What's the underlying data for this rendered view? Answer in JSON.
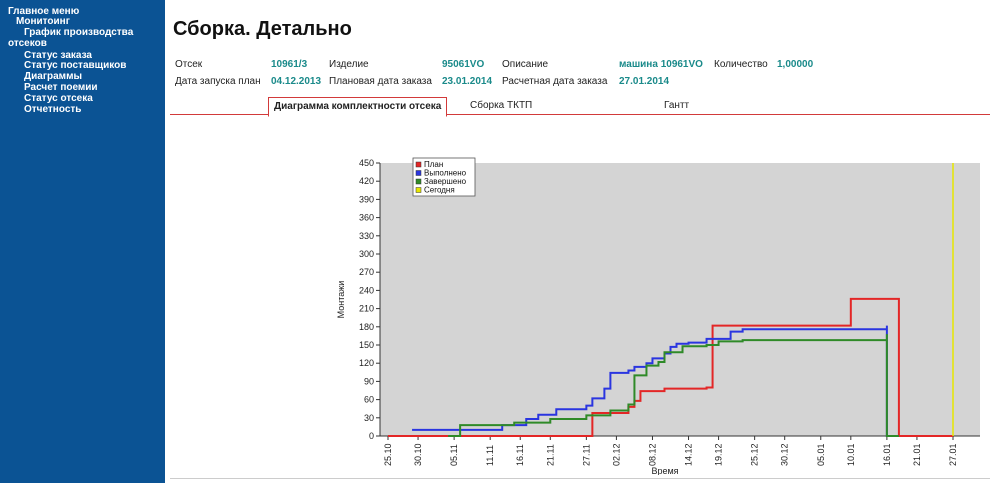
{
  "sidebar": {
    "items": [
      {
        "label": "Главное меню"
      },
      {
        "label": "Монитоинг"
      },
      {
        "label": "График производства"
      },
      {
        "label": "отсеков"
      },
      {
        "label": "Статус заказа"
      },
      {
        "label": "Статус поставщиков"
      },
      {
        "label": "Диаграммы"
      },
      {
        "label": "Расчет поемии"
      },
      {
        "label": "Статус отсека"
      },
      {
        "label": "Отчетность"
      }
    ]
  },
  "page": {
    "title": "Сборка. Детально"
  },
  "info": {
    "otsek_label": "Отсек",
    "otsek_value": "10961/3",
    "izdelie_label": "Изделие",
    "izdelie_value": "95061VO",
    "opisanie_label": "Описание",
    "opisanie_value": "машина 10961VO",
    "kolichestvo_label": "Количество",
    "kolichestvo_value": "1,00000",
    "zapusk_label": "Дата запуска план",
    "zapusk_value": "04.12.2013",
    "plan_zakaz_label": "Плановая дата заказа",
    "plan_zakaz_value": "23.01.2014",
    "rasch_zakaz_label": "Расчетная дата заказа",
    "rasch_zakaz_value": "27.01.2014"
  },
  "tabs": [
    {
      "label": "Диаграмма комплектности отсека",
      "active": true
    },
    {
      "label": "Сборка ТКТП",
      "active": false
    },
    {
      "label": "Гантт",
      "active": false
    }
  ],
  "colors": {
    "sidebar_bg": "#0b5394",
    "accent_value": "#1a8a8a",
    "tab_border": "#d23a3a",
    "plot_bg": "#d4d4d4"
  },
  "chart_data": {
    "type": "line",
    "title": "",
    "xlabel": "Время",
    "ylabel": "Монтажи",
    "ylim": [
      0,
      450
    ],
    "yticks": [
      0,
      30,
      60,
      90,
      120,
      150,
      180,
      210,
      240,
      270,
      300,
      330,
      360,
      390,
      420,
      450
    ],
    "xticks": [
      "25.10",
      "30.10",
      "05.11",
      "11.11",
      "16.11",
      "21.11",
      "27.11",
      "02.12",
      "08.12",
      "14.12",
      "19.12",
      "25.12",
      "30.12",
      "05.01",
      "10.01",
      "16.01",
      "21.01",
      "27.01"
    ],
    "legend_position": "top-left",
    "grid": false,
    "series": [
      {
        "name": "План",
        "color": "#e32626",
        "points": [
          [
            "25.10",
            0
          ],
          [
            "27.11",
            0
          ],
          [
            "28.11",
            38
          ],
          [
            "03.12",
            38
          ],
          [
            "04.12",
            48
          ],
          [
            "05.12",
            58
          ],
          [
            "06.12",
            74
          ],
          [
            "10.12",
            78
          ],
          [
            "17.12",
            80
          ],
          [
            "18.12",
            182
          ],
          [
            "09.01",
            182
          ],
          [
            "10.01",
            226
          ],
          [
            "18.01",
            226
          ],
          [
            "18.01",
            0
          ],
          [
            "27.01",
            0
          ]
        ]
      },
      {
        "name": "Выполнено",
        "color": "#2a35e0",
        "points": [
          [
            "29.10",
            10
          ],
          [
            "13.11",
            18
          ],
          [
            "17.11",
            28
          ],
          [
            "19.11",
            35
          ],
          [
            "22.11",
            44
          ],
          [
            "27.11",
            50
          ],
          [
            "28.11",
            62
          ],
          [
            "30.11",
            78
          ],
          [
            "01.12",
            104
          ],
          [
            "04.12",
            108
          ],
          [
            "05.12",
            114
          ],
          [
            "07.12",
            120
          ],
          [
            "08.12",
            128
          ],
          [
            "10.12",
            136
          ],
          [
            "11.12",
            147
          ],
          [
            "12.12",
            152
          ],
          [
            "14.12",
            154
          ],
          [
            "17.12",
            160
          ],
          [
            "21.12",
            172
          ],
          [
            "23.12",
            176
          ],
          [
            "16.01",
            182
          ],
          [
            "16.01",
            0
          ],
          [
            "18.01",
            0
          ]
        ]
      },
      {
        "name": "Завершено",
        "color": "#2f8a28",
        "points": [
          [
            "04.11",
            0
          ],
          [
            "06.11",
            18
          ],
          [
            "15.11",
            22
          ],
          [
            "21.11",
            28
          ],
          [
            "27.11",
            34
          ],
          [
            "01.12",
            42
          ],
          [
            "04.12",
            52
          ],
          [
            "05.12",
            100
          ],
          [
            "07.12",
            116
          ],
          [
            "09.12",
            122
          ],
          [
            "10.12",
            138
          ],
          [
            "13.12",
            148
          ],
          [
            "17.12",
            150
          ],
          [
            "19.12",
            156
          ],
          [
            "23.12",
            158
          ],
          [
            "16.01",
            168
          ],
          [
            "16.01",
            0
          ],
          [
            "18.01",
            0
          ]
        ]
      },
      {
        "name": "Сегодня",
        "color": "#e6e600",
        "date": "27.01"
      }
    ]
  }
}
